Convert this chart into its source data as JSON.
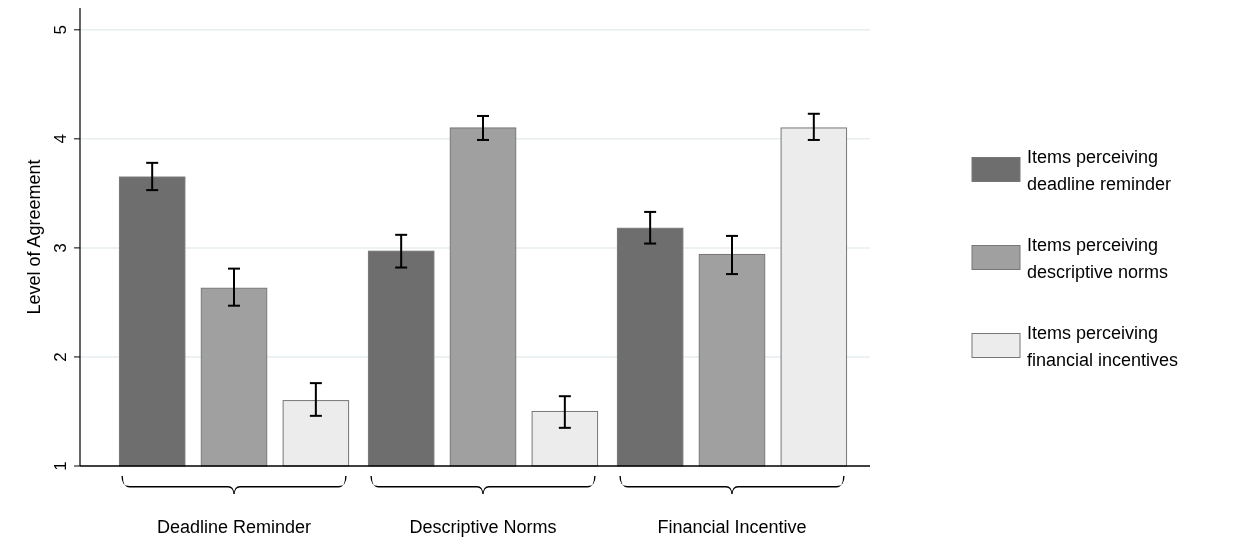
{
  "chart_data": {
    "type": "bar",
    "ylabel": "Level of Agreement",
    "categories": [
      "Deadline Reminder",
      "Descriptive Norms",
      "Financial Incentive"
    ],
    "series": [
      {
        "name": "Items perceiving deadline reminder",
        "color": "#6e6e6e",
        "values": [
          3.65,
          2.97,
          3.18
        ],
        "errors": [
          [
            3.53,
            3.78
          ],
          [
            2.82,
            3.12
          ],
          [
            3.04,
            3.33
          ]
        ]
      },
      {
        "name": "Items perceiving descriptive norms",
        "color": "#a0a0a0",
        "values": [
          2.63,
          4.1,
          2.94
        ],
        "errors": [
          [
            2.47,
            2.81
          ],
          [
            3.99,
            4.21
          ],
          [
            2.76,
            3.11
          ]
        ]
      },
      {
        "name": "Items perceiving financial incentives",
        "color": "#ececec",
        "values": [
          1.6,
          1.5,
          4.1
        ],
        "errors": [
          [
            1.46,
            1.76
          ],
          [
            1.35,
            1.64
          ],
          [
            3.99,
            4.23
          ]
        ]
      }
    ],
    "ylim": [
      1,
      5.2
    ],
    "yticks": [
      1,
      2,
      3,
      4,
      5
    ],
    "grid": "y",
    "legend": "right"
  }
}
